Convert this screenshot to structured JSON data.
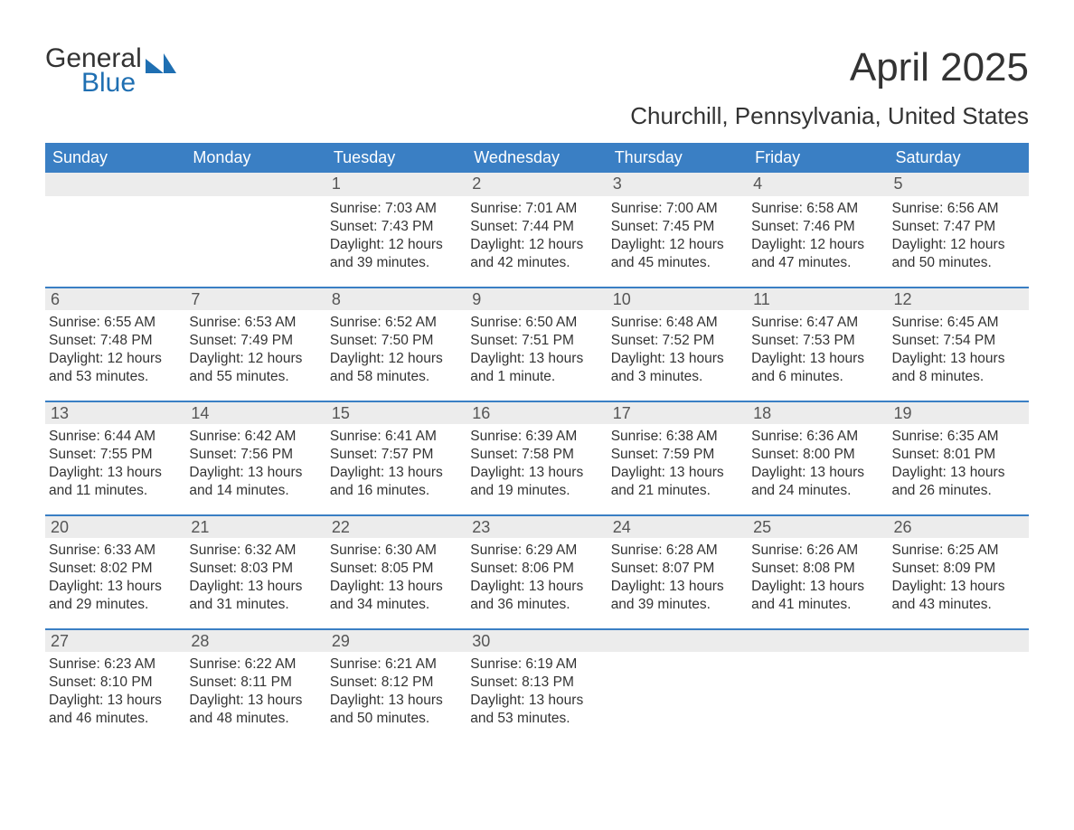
{
  "brand": {
    "general": "General",
    "blue": "Blue",
    "accent": "#1f6fb2"
  },
  "title": "April 2025",
  "location": "Churchill, Pennsylvania, United States",
  "colors": {
    "header_bg": "#3a7fc4",
    "header_text": "#ffffff",
    "daynum_bg": "#ececec",
    "divider": "#3a7fc4",
    "body_text": "#333333",
    "page_bg": "#ffffff"
  },
  "weekdays": [
    "Sunday",
    "Monday",
    "Tuesday",
    "Wednesday",
    "Thursday",
    "Friday",
    "Saturday"
  ],
  "labels": {
    "sunrise": "Sunrise:",
    "sunset": "Sunset:",
    "daylight": "Daylight:"
  },
  "weeks": [
    [
      {
        "empty": true
      },
      {
        "empty": true
      },
      {
        "day": "1",
        "sunrise": "7:03 AM",
        "sunset": "7:43 PM",
        "daylight": "12 hours and 39 minutes."
      },
      {
        "day": "2",
        "sunrise": "7:01 AM",
        "sunset": "7:44 PM",
        "daylight": "12 hours and 42 minutes."
      },
      {
        "day": "3",
        "sunrise": "7:00 AM",
        "sunset": "7:45 PM",
        "daylight": "12 hours and 45 minutes."
      },
      {
        "day": "4",
        "sunrise": "6:58 AM",
        "sunset": "7:46 PM",
        "daylight": "12 hours and 47 minutes."
      },
      {
        "day": "5",
        "sunrise": "6:56 AM",
        "sunset": "7:47 PM",
        "daylight": "12 hours and 50 minutes."
      }
    ],
    [
      {
        "day": "6",
        "sunrise": "6:55 AM",
        "sunset": "7:48 PM",
        "daylight": "12 hours and 53 minutes."
      },
      {
        "day": "7",
        "sunrise": "6:53 AM",
        "sunset": "7:49 PM",
        "daylight": "12 hours and 55 minutes."
      },
      {
        "day": "8",
        "sunrise": "6:52 AM",
        "sunset": "7:50 PM",
        "daylight": "12 hours and 58 minutes."
      },
      {
        "day": "9",
        "sunrise": "6:50 AM",
        "sunset": "7:51 PM",
        "daylight": "13 hours and 1 minute."
      },
      {
        "day": "10",
        "sunrise": "6:48 AM",
        "sunset": "7:52 PM",
        "daylight": "13 hours and 3 minutes."
      },
      {
        "day": "11",
        "sunrise": "6:47 AM",
        "sunset": "7:53 PM",
        "daylight": "13 hours and 6 minutes."
      },
      {
        "day": "12",
        "sunrise": "6:45 AM",
        "sunset": "7:54 PM",
        "daylight": "13 hours and 8 minutes."
      }
    ],
    [
      {
        "day": "13",
        "sunrise": "6:44 AM",
        "sunset": "7:55 PM",
        "daylight": "13 hours and 11 minutes."
      },
      {
        "day": "14",
        "sunrise": "6:42 AM",
        "sunset": "7:56 PM",
        "daylight": "13 hours and 14 minutes."
      },
      {
        "day": "15",
        "sunrise": "6:41 AM",
        "sunset": "7:57 PM",
        "daylight": "13 hours and 16 minutes."
      },
      {
        "day": "16",
        "sunrise": "6:39 AM",
        "sunset": "7:58 PM",
        "daylight": "13 hours and 19 minutes."
      },
      {
        "day": "17",
        "sunrise": "6:38 AM",
        "sunset": "7:59 PM",
        "daylight": "13 hours and 21 minutes."
      },
      {
        "day": "18",
        "sunrise": "6:36 AM",
        "sunset": "8:00 PM",
        "daylight": "13 hours and 24 minutes."
      },
      {
        "day": "19",
        "sunrise": "6:35 AM",
        "sunset": "8:01 PM",
        "daylight": "13 hours and 26 minutes."
      }
    ],
    [
      {
        "day": "20",
        "sunrise": "6:33 AM",
        "sunset": "8:02 PM",
        "daylight": "13 hours and 29 minutes."
      },
      {
        "day": "21",
        "sunrise": "6:32 AM",
        "sunset": "8:03 PM",
        "daylight": "13 hours and 31 minutes."
      },
      {
        "day": "22",
        "sunrise": "6:30 AM",
        "sunset": "8:05 PM",
        "daylight": "13 hours and 34 minutes."
      },
      {
        "day": "23",
        "sunrise": "6:29 AM",
        "sunset": "8:06 PM",
        "daylight": "13 hours and 36 minutes."
      },
      {
        "day": "24",
        "sunrise": "6:28 AM",
        "sunset": "8:07 PM",
        "daylight": "13 hours and 39 minutes."
      },
      {
        "day": "25",
        "sunrise": "6:26 AM",
        "sunset": "8:08 PM",
        "daylight": "13 hours and 41 minutes."
      },
      {
        "day": "26",
        "sunrise": "6:25 AM",
        "sunset": "8:09 PM",
        "daylight": "13 hours and 43 minutes."
      }
    ],
    [
      {
        "day": "27",
        "sunrise": "6:23 AM",
        "sunset": "8:10 PM",
        "daylight": "13 hours and 46 minutes."
      },
      {
        "day": "28",
        "sunrise": "6:22 AM",
        "sunset": "8:11 PM",
        "daylight": "13 hours and 48 minutes."
      },
      {
        "day": "29",
        "sunrise": "6:21 AM",
        "sunset": "8:12 PM",
        "daylight": "13 hours and 50 minutes."
      },
      {
        "day": "30",
        "sunrise": "6:19 AM",
        "sunset": "8:13 PM",
        "daylight": "13 hours and 53 minutes."
      },
      {
        "empty": true
      },
      {
        "empty": true
      },
      {
        "empty": true
      }
    ]
  ]
}
